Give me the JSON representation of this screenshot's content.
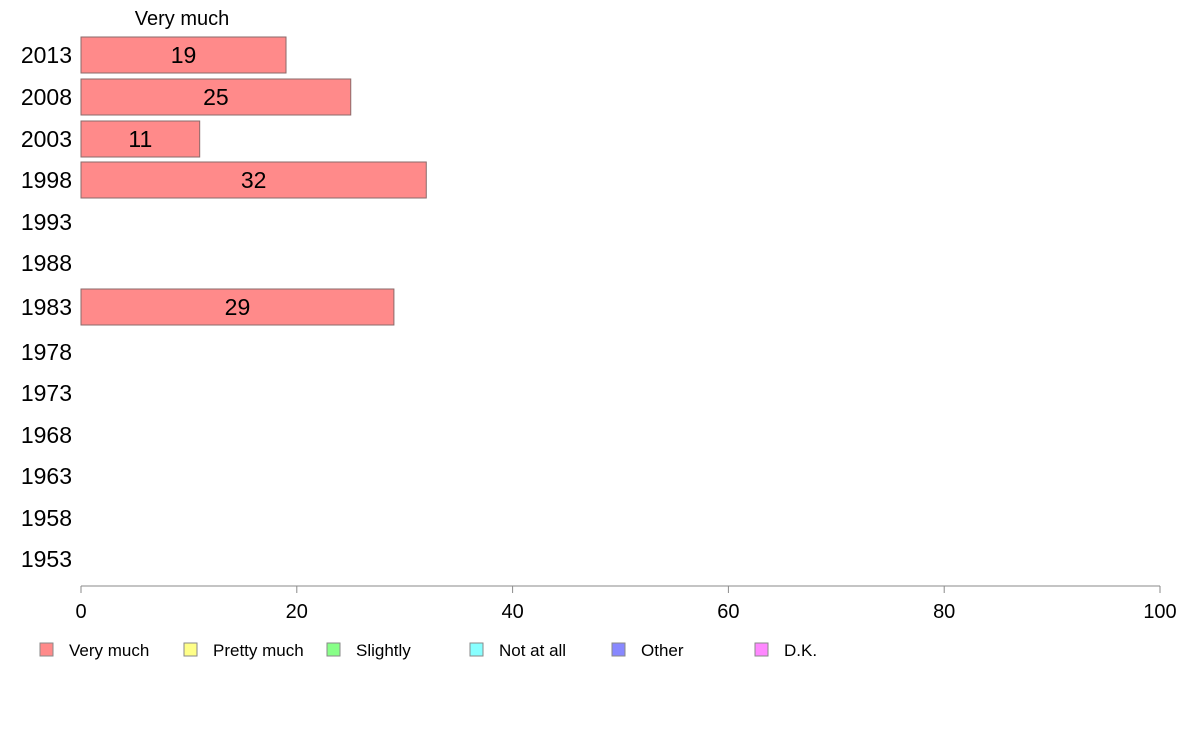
{
  "chart_data": {
    "type": "bar",
    "orientation": "horizontal",
    "header_label": "Very much",
    "categories": [
      "2013",
      "2008",
      "2003",
      "1998",
      "1993",
      "1988",
      "1983",
      "1978",
      "1973",
      "1968",
      "1963",
      "1958",
      "1953"
    ],
    "series": [
      {
        "name": "Very much",
        "color": "#ff8a8a",
        "values": [
          19,
          25,
          11,
          32,
          null,
          null,
          29,
          null,
          null,
          null,
          null,
          null,
          null
        ]
      }
    ],
    "xlim": [
      0,
      100
    ],
    "xticks": [
      0,
      20,
      40,
      60,
      80,
      100
    ],
    "legend_position": "bottom",
    "legend": [
      {
        "label": "Very much",
        "color": "#ff8a8a"
      },
      {
        "label": "Pretty much",
        "color": "#ffff88"
      },
      {
        "label": "Slightly",
        "color": "#88ff88"
      },
      {
        "label": "Not at all",
        "color": "#88ffff"
      },
      {
        "label": "Other",
        "color": "#8888ff"
      },
      {
        "label": "D.K.",
        "color": "#ff88ff"
      }
    ],
    "grid": false
  }
}
